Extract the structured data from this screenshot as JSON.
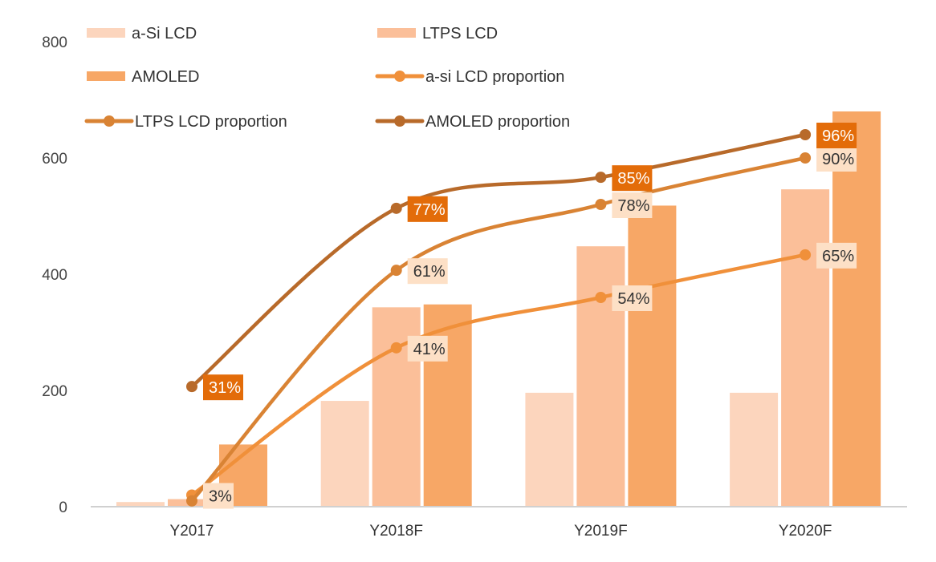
{
  "chart_data": {
    "type": "bar",
    "title": "",
    "xlabel": "",
    "ylabel": "",
    "ylim": [
      0,
      800
    ],
    "yticks": [
      0,
      200,
      400,
      600,
      800
    ],
    "secondary_ylim_percent": [
      0,
      120
    ],
    "secondary_axis_visible": false,
    "grid": false,
    "legend_placement": "top",
    "categories": [
      "Y2017",
      "Y2018F",
      "Y2019F",
      "Y2020F"
    ],
    "series": [
      {
        "name": "a-Si LCD",
        "type": "bar",
        "color": "#fcd5bd",
        "values": [
          8,
          182,
          196,
          196
        ]
      },
      {
        "name": "LTPS LCD",
        "type": "bar",
        "color": "#fbbf99",
        "values": [
          13,
          343,
          448,
          546
        ]
      },
      {
        "name": "AMOLED",
        "type": "bar",
        "color": "#f7a766",
        "values": [
          107,
          348,
          518,
          680
        ]
      },
      {
        "name": "a-si LCD proportion",
        "type": "line",
        "color": "#f0903a",
        "values": [
          3,
          41,
          54,
          65
        ],
        "labels": [
          "3%",
          "41%",
          "54%",
          "65%"
        ],
        "label_bg": "#fde0c6",
        "label_color": "#333333"
      },
      {
        "name": "LTPS LCD proportion",
        "type": "line",
        "color": "#d98334",
        "values": [
          1.5,
          61,
          78,
          90
        ],
        "labels": [
          "",
          "61%",
          "78%",
          "90%"
        ],
        "label_bg": "#fde0c6",
        "label_color": "#333333"
      },
      {
        "name": "AMOLED proportion",
        "type": "line",
        "color": "#b86a2a",
        "values": [
          31,
          77,
          85,
          96
        ],
        "labels": [
          "31%",
          "77%",
          "85%",
          "96%"
        ],
        "label_bg": "#e36c09",
        "label_color": "#ffffff"
      }
    ]
  }
}
